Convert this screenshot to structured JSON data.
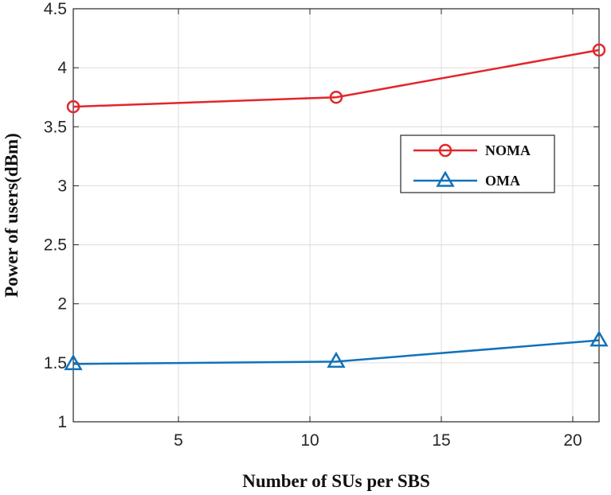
{
  "chart_data": {
    "type": "line",
    "xlabel": "Number of SUs per SBS",
    "ylabel": "Power of users(dBm)",
    "xlim": [
      1,
      21
    ],
    "ylim": [
      1,
      4.5
    ],
    "xticks": [
      5,
      10,
      15,
      20
    ],
    "yticks": [
      1,
      1.5,
      2,
      2.5,
      3,
      3.5,
      4,
      4.5
    ],
    "x": [
      1,
      11,
      21
    ],
    "grid": true,
    "legend_position": "right",
    "series": [
      {
        "name": "NOMA",
        "values": [
          3.67,
          3.75,
          4.15
        ],
        "color": "#e3262b",
        "marker": "circle"
      },
      {
        "name": "OMA",
        "values": [
          1.49,
          1.51,
          1.69
        ],
        "color": "#0f72bb",
        "marker": "triangle"
      }
    ]
  }
}
